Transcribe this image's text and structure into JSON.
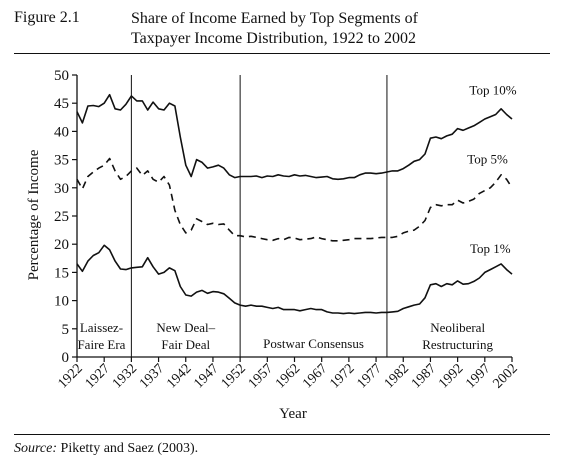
{
  "figure": {
    "label": "Figure 2.1",
    "title_line1": "Share of Income Earned by Top Segments of",
    "title_line2": "Taxpayer Income Distribution, 1922 to 2002",
    "source_label": "Source:",
    "source_text": " Piketty and Saez (2003)."
  },
  "chart_data": {
    "type": "line",
    "xlabel": "Year",
    "ylabel": "Percentage of Income",
    "xlim": [
      1922,
      2002
    ],
    "ylim": [
      0,
      50
    ],
    "yticks": [
      0,
      5,
      10,
      15,
      20,
      25,
      30,
      35,
      40,
      45,
      50
    ],
    "xticks": [
      1922,
      1927,
      1932,
      1937,
      1942,
      1947,
      1952,
      1957,
      1962,
      1967,
      1972,
      1977,
      1982,
      1987,
      1992,
      1997,
      2002
    ],
    "grid": false,
    "era_dividers": [
      1932,
      1952,
      1979
    ],
    "eras": [
      {
        "line1": "Laissez-",
        "line2": "Faire Era",
        "x": 1926.5
      },
      {
        "line1": "New Deal–",
        "line2": "Fair Deal",
        "x": 1942
      },
      {
        "line1": "Postwar Consensus",
        "line2": "",
        "x": 1965.5
      },
      {
        "line1": "Neoliberal",
        "line2": "Restructuring",
        "x": 1992
      }
    ],
    "series": [
      {
        "name": "Top 10%",
        "style": "solid",
        "label_at": [
          1998.5,
          46.5
        ],
        "x": [
          1922,
          1923,
          1924,
          1925,
          1926,
          1927,
          1928,
          1929,
          1930,
          1931,
          1932,
          1933,
          1934,
          1935,
          1936,
          1937,
          1938,
          1939,
          1940,
          1941,
          1942,
          1943,
          1944,
          1945,
          1946,
          1947,
          1948,
          1949,
          1950,
          1951,
          1952,
          1953,
          1954,
          1955,
          1956,
          1957,
          1958,
          1959,
          1960,
          1961,
          1962,
          1963,
          1964,
          1965,
          1966,
          1967,
          1968,
          1969,
          1970,
          1971,
          1972,
          1973,
          1974,
          1975,
          1976,
          1977,
          1978,
          1979,
          1980,
          1981,
          1982,
          1983,
          1984,
          1985,
          1986,
          1987,
          1988,
          1989,
          1990,
          1991,
          1992,
          1993,
          1994,
          1995,
          1996,
          1997,
          1998,
          1999,
          2000,
          2001,
          2002
        ],
        "y": [
          43.5,
          41.5,
          44.5,
          44.6,
          44.4,
          45.0,
          46.5,
          44.0,
          43.8,
          44.8,
          46.3,
          45.4,
          45.4,
          43.8,
          45.2,
          44.0,
          43.8,
          45.0,
          44.5,
          39.0,
          34.0,
          32.0,
          35.0,
          34.5,
          33.5,
          33.7,
          34.0,
          33.5,
          32.3,
          31.8,
          32.0,
          32.0,
          32.0,
          32.1,
          31.8,
          32.1,
          32.0,
          32.3,
          32.1,
          32.0,
          32.3,
          32.1,
          32.2,
          32.0,
          31.8,
          31.9,
          32.0,
          31.6,
          31.5,
          31.6,
          31.8,
          31.8,
          32.3,
          32.6,
          32.6,
          32.5,
          32.6,
          32.8,
          33.0,
          33.0,
          33.4,
          34.0,
          34.7,
          35.0,
          36.0,
          38.8,
          39.0,
          38.7,
          39.2,
          39.5,
          40.5,
          40.2,
          40.6,
          41.0,
          41.6,
          42.2,
          42.6,
          43.0,
          44.0,
          43.0,
          42.2
        ]
      },
      {
        "name": "Top 5%",
        "style": "dashed",
        "label_at": [
          1997.5,
          34.3
        ],
        "x": [
          1922,
          1923,
          1924,
          1925,
          1926,
          1927,
          1928,
          1929,
          1930,
          1931,
          1932,
          1933,
          1934,
          1935,
          1936,
          1937,
          1938,
          1939,
          1940,
          1941,
          1942,
          1943,
          1944,
          1945,
          1946,
          1947,
          1948,
          1949,
          1950,
          1951,
          1952,
          1953,
          1954,
          1955,
          1956,
          1957,
          1958,
          1959,
          1960,
          1961,
          1962,
          1963,
          1964,
          1965,
          1966,
          1967,
          1968,
          1969,
          1970,
          1971,
          1972,
          1973,
          1974,
          1975,
          1976,
          1977,
          1978,
          1979,
          1980,
          1981,
          1982,
          1983,
          1984,
          1985,
          1986,
          1987,
          1988,
          1989,
          1990,
          1991,
          1992,
          1993,
          1994,
          1995,
          1996,
          1997,
          1998,
          1999,
          2000,
          2001,
          2002
        ],
        "y": [
          31.5,
          29.8,
          32.0,
          32.8,
          33.5,
          34.0,
          35.2,
          33.0,
          31.5,
          32.0,
          33.0,
          33.5,
          32.2,
          33.0,
          31.5,
          31.0,
          32.0,
          30.5,
          26.0,
          23.5,
          22.0,
          22.5,
          24.5,
          24.0,
          23.5,
          23.7,
          23.5,
          23.6,
          22.5,
          21.5,
          21.5,
          21.3,
          21.4,
          21.2,
          21.0,
          20.8,
          20.7,
          21.0,
          20.8,
          21.2,
          21.1,
          20.8,
          20.9,
          21.0,
          21.3,
          21.0,
          20.8,
          20.6,
          20.6,
          20.7,
          20.8,
          21.0,
          21.0,
          21.0,
          21.0,
          21.1,
          21.2,
          21.2,
          21.2,
          21.4,
          22.0,
          22.3,
          22.5,
          23.2,
          24.2,
          26.5,
          27.0,
          26.8,
          27.0,
          27.0,
          27.8,
          27.3,
          27.6,
          28.0,
          29.0,
          29.5,
          30.0,
          31.0,
          32.3,
          31.5,
          30.0
        ]
      },
      {
        "name": "Top 1%",
        "style": "solid",
        "label_at": [
          1998,
          18.4
        ],
        "x": [
          1922,
          1923,
          1924,
          1925,
          1926,
          1927,
          1928,
          1929,
          1930,
          1931,
          1932,
          1933,
          1934,
          1935,
          1936,
          1937,
          1938,
          1939,
          1940,
          1941,
          1942,
          1943,
          1944,
          1945,
          1946,
          1947,
          1948,
          1949,
          1950,
          1951,
          1952,
          1953,
          1954,
          1955,
          1956,
          1957,
          1958,
          1959,
          1960,
          1961,
          1962,
          1963,
          1964,
          1965,
          1966,
          1967,
          1968,
          1969,
          1970,
          1971,
          1972,
          1973,
          1974,
          1975,
          1976,
          1977,
          1978,
          1979,
          1980,
          1981,
          1982,
          1983,
          1984,
          1985,
          1986,
          1987,
          1988,
          1989,
          1990,
          1991,
          1992,
          1993,
          1994,
          1995,
          1996,
          1997,
          1998,
          1999,
          2000,
          2001,
          2002
        ],
        "y": [
          16.5,
          15.2,
          17.0,
          18.0,
          18.5,
          19.8,
          19.0,
          17.0,
          15.6,
          15.5,
          15.8,
          15.9,
          16.0,
          17.6,
          16.0,
          14.7,
          15.0,
          15.8,
          15.3,
          12.5,
          11.0,
          10.8,
          11.5,
          11.8,
          11.3,
          11.6,
          11.5,
          11.2,
          10.4,
          9.6,
          9.2,
          9.0,
          9.2,
          9.0,
          9.0,
          8.8,
          8.6,
          8.8,
          8.4,
          8.4,
          8.4,
          8.2,
          8.4,
          8.6,
          8.4,
          8.4,
          8.0,
          7.8,
          7.8,
          7.7,
          7.8,
          7.7,
          7.8,
          7.9,
          7.9,
          7.8,
          7.9,
          7.9,
          8.0,
          8.1,
          8.6,
          8.9,
          9.2,
          9.4,
          10.5,
          12.8,
          13.0,
          12.5,
          13.0,
          12.8,
          13.5,
          12.9,
          13.0,
          13.4,
          14.0,
          15.0,
          15.5,
          16.0,
          16.5,
          15.5,
          14.7
        ]
      }
    ]
  }
}
